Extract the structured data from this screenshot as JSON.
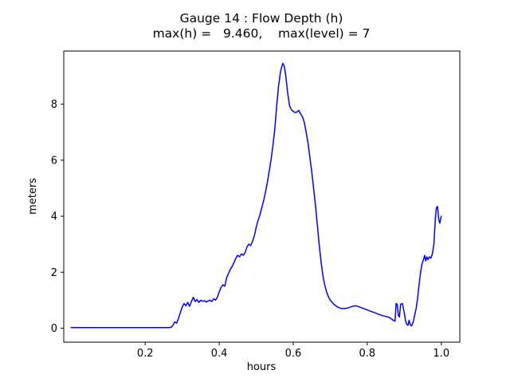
{
  "chart_data": {
    "type": "line",
    "title": "Gauge 14 : Flow Depth (h)",
    "subtitle": "max(h) =   9.460,    max(level) = 7",
    "xlabel": "hours",
    "ylabel": "meters",
    "max_h": 9.46,
    "max_level": 7,
    "line_color": "#0000ff",
    "axis_color": "#000000",
    "xlim": [
      -0.02,
      1.05
    ],
    "ylim": [
      -0.5,
      9.9
    ],
    "grid": false,
    "legend": "none",
    "x_ticks": [
      {
        "v": 0.2,
        "label": "0.2"
      },
      {
        "v": 0.4,
        "label": "0.4"
      },
      {
        "v": 0.6,
        "label": "0.6"
      },
      {
        "v": 0.8,
        "label": "0.8"
      },
      {
        "v": 1.0,
        "label": "1.0"
      }
    ],
    "y_ticks": [
      {
        "v": 0,
        "label": "0"
      },
      {
        "v": 2,
        "label": "2"
      },
      {
        "v": 4,
        "label": "4"
      },
      {
        "v": 6,
        "label": "6"
      },
      {
        "v": 8,
        "label": "8"
      }
    ],
    "points": [
      [
        0.0,
        0.02
      ],
      [
        0.05,
        0.02
      ],
      [
        0.1,
        0.02
      ],
      [
        0.15,
        0.02
      ],
      [
        0.2,
        0.02
      ],
      [
        0.25,
        0.02
      ],
      [
        0.265,
        0.02
      ],
      [
        0.27,
        0.03
      ],
      [
        0.275,
        0.1
      ],
      [
        0.28,
        0.22
      ],
      [
        0.285,
        0.18
      ],
      [
        0.29,
        0.35
      ],
      [
        0.295,
        0.55
      ],
      [
        0.3,
        0.75
      ],
      [
        0.305,
        0.88
      ],
      [
        0.31,
        0.8
      ],
      [
        0.315,
        0.92
      ],
      [
        0.32,
        0.78
      ],
      [
        0.325,
        0.95
      ],
      [
        0.33,
        1.1
      ],
      [
        0.335,
        0.95
      ],
      [
        0.34,
        1.02
      ],
      [
        0.345,
        0.92
      ],
      [
        0.35,
        1.0
      ],
      [
        0.355,
        0.96
      ],
      [
        0.36,
        0.98
      ],
      [
        0.365,
        0.93
      ],
      [
        0.37,
        0.97
      ],
      [
        0.375,
        1.0
      ],
      [
        0.38,
        0.95
      ],
      [
        0.385,
        1.05
      ],
      [
        0.39,
        1.0
      ],
      [
        0.395,
        1.1
      ],
      [
        0.4,
        1.3
      ],
      [
        0.405,
        1.45
      ],
      [
        0.41,
        1.55
      ],
      [
        0.415,
        1.5
      ],
      [
        0.42,
        1.8
      ],
      [
        0.425,
        1.95
      ],
      [
        0.43,
        2.1
      ],
      [
        0.435,
        2.2
      ],
      [
        0.44,
        2.35
      ],
      [
        0.445,
        2.5
      ],
      [
        0.45,
        2.6
      ],
      [
        0.455,
        2.55
      ],
      [
        0.46,
        2.65
      ],
      [
        0.465,
        2.6
      ],
      [
        0.47,
        2.7
      ],
      [
        0.475,
        2.9
      ],
      [
        0.48,
        3.0
      ],
      [
        0.485,
        2.95
      ],
      [
        0.49,
        3.1
      ],
      [
        0.495,
        3.3
      ],
      [
        0.5,
        3.6
      ],
      [
        0.505,
        3.85
      ],
      [
        0.51,
        4.05
      ],
      [
        0.515,
        4.3
      ],
      [
        0.52,
        4.55
      ],
      [
        0.525,
        4.85
      ],
      [
        0.53,
        5.2
      ],
      [
        0.535,
        5.6
      ],
      [
        0.54,
        6.0
      ],
      [
        0.545,
        6.5
      ],
      [
        0.55,
        7.1
      ],
      [
        0.555,
        7.9
      ],
      [
        0.56,
        8.6
      ],
      [
        0.565,
        9.1
      ],
      [
        0.568,
        9.3
      ],
      [
        0.572,
        9.46
      ],
      [
        0.576,
        9.35
      ],
      [
        0.58,
        9.0
      ],
      [
        0.585,
        8.4
      ],
      [
        0.59,
        7.95
      ],
      [
        0.595,
        7.8
      ],
      [
        0.6,
        7.75
      ],
      [
        0.605,
        7.7
      ],
      [
        0.61,
        7.72
      ],
      [
        0.615,
        7.78
      ],
      [
        0.62,
        7.65
      ],
      [
        0.625,
        7.55
      ],
      [
        0.63,
        7.35
      ],
      [
        0.635,
        7.0
      ],
      [
        0.64,
        6.6
      ],
      [
        0.645,
        6.1
      ],
      [
        0.65,
        5.6
      ],
      [
        0.655,
        5.0
      ],
      [
        0.66,
        4.4
      ],
      [
        0.665,
        3.7
      ],
      [
        0.67,
        3.0
      ],
      [
        0.675,
        2.4
      ],
      [
        0.68,
        1.9
      ],
      [
        0.685,
        1.55
      ],
      [
        0.69,
        1.3
      ],
      [
        0.695,
        1.12
      ],
      [
        0.7,
        1.0
      ],
      [
        0.71,
        0.85
      ],
      [
        0.72,
        0.75
      ],
      [
        0.73,
        0.7
      ],
      [
        0.74,
        0.7
      ],
      [
        0.75,
        0.73
      ],
      [
        0.76,
        0.78
      ],
      [
        0.77,
        0.8
      ],
      [
        0.78,
        0.75
      ],
      [
        0.79,
        0.7
      ],
      [
        0.8,
        0.65
      ],
      [
        0.81,
        0.6
      ],
      [
        0.82,
        0.55
      ],
      [
        0.83,
        0.5
      ],
      [
        0.84,
        0.45
      ],
      [
        0.85,
        0.42
      ],
      [
        0.86,
        0.38
      ],
      [
        0.865,
        0.33
      ],
      [
        0.87,
        0.28
      ],
      [
        0.875,
        0.25
      ],
      [
        0.878,
        0.88
      ],
      [
        0.881,
        0.85
      ],
      [
        0.884,
        0.45
      ],
      [
        0.887,
        0.4
      ],
      [
        0.89,
        0.85
      ],
      [
        0.895,
        0.88
      ],
      [
        0.9,
        0.55
      ],
      [
        0.903,
        0.3
      ],
      [
        0.906,
        0.15
      ],
      [
        0.91,
        0.1
      ],
      [
        0.913,
        0.28
      ],
      [
        0.916,
        0.12
      ],
      [
        0.92,
        0.08
      ],
      [
        0.924,
        0.22
      ],
      [
        0.928,
        0.45
      ],
      [
        0.932,
        0.7
      ],
      [
        0.936,
        1.05
      ],
      [
        0.94,
        1.55
      ],
      [
        0.944,
        2.0
      ],
      [
        0.948,
        2.3
      ],
      [
        0.952,
        2.45
      ],
      [
        0.955,
        2.6
      ],
      [
        0.958,
        2.4
      ],
      [
        0.961,
        2.55
      ],
      [
        0.964,
        2.45
      ],
      [
        0.968,
        2.55
      ],
      [
        0.972,
        2.5
      ],
      [
        0.976,
        2.65
      ],
      [
        0.98,
        3.0
      ],
      [
        0.984,
        3.9
      ],
      [
        0.987,
        4.3
      ],
      [
        0.99,
        4.35
      ],
      [
        0.993,
        3.9
      ],
      [
        0.996,
        3.75
      ],
      [
        1.0,
        4.0
      ]
    ]
  }
}
